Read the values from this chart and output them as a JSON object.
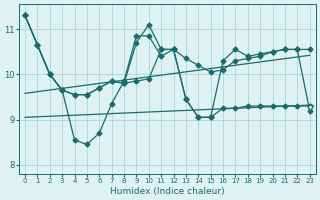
{
  "xlabel": "Humidex (Indice chaleur)",
  "bg_color": "#dff2f2",
  "grid_color": "#aad8d8",
  "line_color": "#1a6b6b",
  "xlim": [
    -0.5,
    23.5
  ],
  "ylim": [
    7.8,
    11.55
  ],
  "yticks": [
    8,
    9,
    10,
    11
  ],
  "xticks": [
    0,
    1,
    2,
    3,
    4,
    5,
    6,
    7,
    8,
    9,
    10,
    11,
    12,
    13,
    14,
    15,
    16,
    17,
    18,
    19,
    20,
    21,
    22,
    23
  ],
  "line1_x": [
    0,
    23
  ],
  "line1_y": [
    9.05,
    9.32
  ],
  "line2_x": [
    0,
    23
  ],
  "line2_y": [
    9.58,
    10.42
  ],
  "series_main_x": [
    0,
    1,
    2,
    3,
    4,
    5,
    6,
    7,
    8,
    9,
    10,
    11,
    12,
    13,
    14,
    15,
    16,
    17,
    18,
    19,
    20,
    21,
    22,
    23
  ],
  "series_main_y": [
    11.3,
    10.65,
    10.0,
    9.65,
    9.55,
    9.55,
    9.7,
    9.85,
    9.8,
    9.85,
    9.9,
    10.55,
    10.55,
    10.35,
    10.2,
    10.05,
    10.1,
    10.3,
    10.35,
    10.4,
    10.5,
    10.55,
    10.55,
    10.55
  ],
  "series_zigzag_x": [
    0,
    1,
    2,
    3,
    4,
    5,
    6,
    7,
    8,
    9,
    10,
    11,
    12,
    13,
    14,
    15,
    16,
    17,
    18,
    19,
    20,
    21,
    22,
    23
  ],
  "series_zigzag_y": [
    11.3,
    10.65,
    10.0,
    9.65,
    8.55,
    8.45,
    8.7,
    9.35,
    9.85,
    10.85,
    10.85,
    10.4,
    10.55,
    9.45,
    9.05,
    9.05,
    9.25,
    9.25,
    9.3,
    9.3,
    9.3,
    9.3,
    9.3,
    9.3
  ],
  "series_upper_x": [
    0,
    1,
    2,
    3,
    4,
    5,
    6,
    7,
    8,
    9,
    10,
    11,
    12,
    13,
    14,
    15,
    16,
    17,
    18,
    19,
    20,
    21,
    22,
    23
  ],
  "series_upper_y": [
    11.3,
    10.65,
    10.0,
    9.65,
    9.55,
    9.55,
    9.7,
    9.85,
    9.8,
    10.7,
    11.1,
    10.55,
    10.55,
    9.45,
    9.05,
    9.05,
    10.3,
    10.55,
    10.4,
    10.45,
    10.5,
    10.55,
    10.55,
    9.2
  ],
  "tri_x": [
    23
  ],
  "tri_y": [
    9.25
  ],
  "lw": 0.9,
  "ms": 2.5
}
